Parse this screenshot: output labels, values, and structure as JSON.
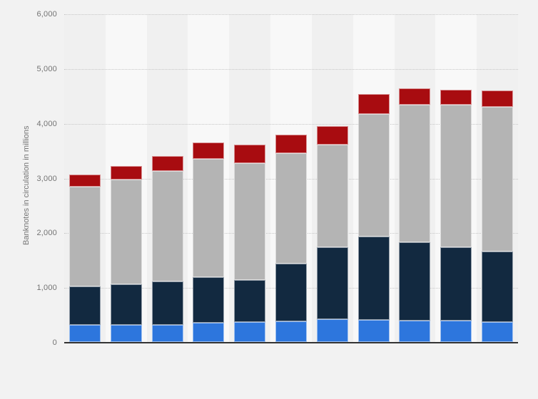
{
  "chart_data": {
    "type": "bar",
    "variant": "stacked-vertical",
    "title": "",
    "xlabel": "",
    "ylabel": "Banknotes in circulation in millions",
    "ylim": [
      0,
      6000
    ],
    "ytick_interval": 1000,
    "ytick_labels": [
      "0",
      "1,000",
      "2,000",
      "3,000",
      "4,000",
      "5,000",
      "6,000"
    ],
    "grid": "horizontal-dotted",
    "legend_position": "none",
    "x_tick_labels_visible": false,
    "categories": [
      "",
      "",
      "",
      "",
      "",
      "",
      "",
      "",
      "",
      "",
      ""
    ],
    "series": [
      {
        "name": "segment-blue",
        "color": "#2d76dd",
        "values": [
          310,
          315,
          315,
          350,
          370,
          380,
          415,
          405,
          390,
          390,
          370
        ]
      },
      {
        "name": "segment-navy",
        "color": "#122940",
        "values": [
          705,
          735,
          790,
          830,
          765,
          1050,
          1310,
          1525,
          1435,
          1340,
          1280
        ]
      },
      {
        "name": "segment-gray",
        "color": "#b4b4b4",
        "values": [
          1825,
          1915,
          2025,
          2165,
          2130,
          2015,
          1885,
          2230,
          2510,
          2600,
          2650
        ]
      },
      {
        "name": "segment-red",
        "color": "#a80c10",
        "values": [
          225,
          250,
          270,
          305,
          340,
          340,
          335,
          365,
          300,
          280,
          295
        ]
      }
    ],
    "stack_totals": [
      3065,
      3215,
      3400,
      3650,
      3605,
      3785,
      3945,
      4525,
      4635,
      4610,
      4595
    ]
  },
  "colors": {
    "page_background": "#f2f2f2",
    "column_band_even": "#f0f0f0",
    "column_band_odd": "#f8f8f8",
    "gridline": "#c7c7c7",
    "axis_line": "#333333",
    "tick_text": "#737373"
  }
}
